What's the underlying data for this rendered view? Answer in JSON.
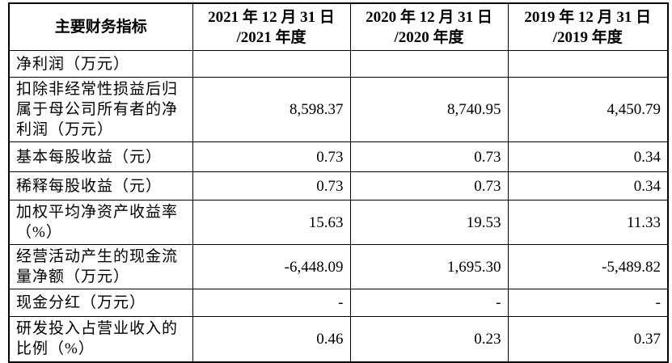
{
  "table": {
    "header": [
      [
        "主要财务指标"
      ],
      [
        "2021 年 12 月 31 日",
        "/2021 年度"
      ],
      [
        "2020 年 12 月 31 日",
        "/2020 年度"
      ],
      [
        "2019 年 12 月 31 日",
        "/2019 年度"
      ]
    ],
    "rows": [
      [
        "净利润（万元）",
        null,
        null,
        null
      ],
      [
        "扣除非经常性损益后归属于母公司所有者的净利润（万元）",
        "8,598.37",
        "8,740.95",
        "4,450.79"
      ],
      [
        "基本每股收益（元）",
        "0.73",
        "0.73",
        "0.34"
      ],
      [
        "稀释每股收益（元）",
        "0.73",
        "0.73",
        "0.34"
      ],
      [
        "加权平均净资产收益率（%）",
        "15.63",
        "19.53",
        "11.33"
      ],
      [
        "经营活动产生的现金流量净额（万元）",
        "-6,448.09",
        "1,695.30",
        "-5,489.82"
      ],
      [
        "现金分红（万元）",
        "-",
        "-",
        "-"
      ],
      [
        "研发投入占营业收入的比例（%）",
        "0.46",
        "0.23",
        "0.37"
      ]
    ]
  }
}
